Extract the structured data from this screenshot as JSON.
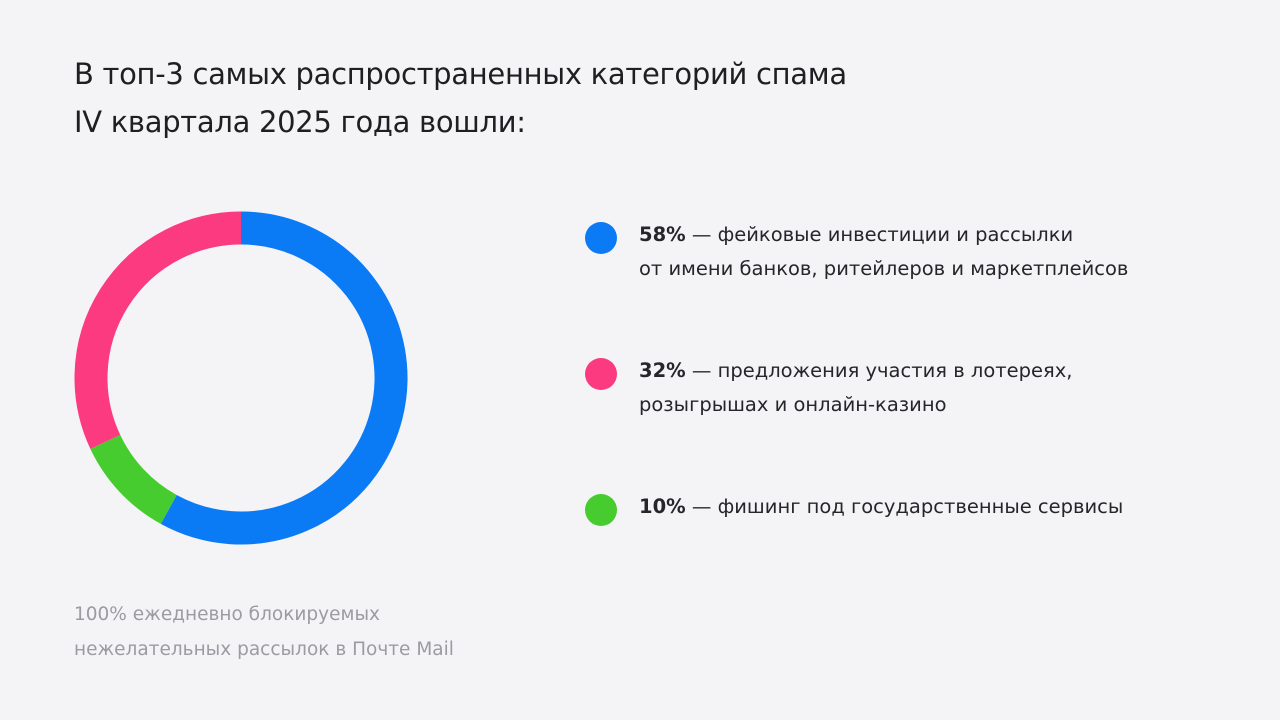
{
  "title": {
    "line1": "В топ-3 самых распространенных категорий спама",
    "line2": "IV квартала 2025 года вошли:"
  },
  "footnote": {
    "line1": "100% ежедневно блокируемых",
    "line2": "нежелательных рассылок в Почте Mail"
  },
  "chart_data": {
    "type": "pie",
    "donut": true,
    "unit": "%",
    "categories": [
      "фейковые инвестиции и рассылки от имени банков, ритейлеров и маркетплейсов",
      "фишинг под государственные сервисы",
      "предложения участия в лотереях, розыгрышах и онлайн-казино"
    ],
    "values": [
      58,
      10,
      32
    ],
    "colors": [
      "#0a7bf5",
      "#46cc2f",
      "#fb3a7f"
    ],
    "legend_placement": "right"
  },
  "legend": [
    {
      "percent": "58%",
      "line1_rest": " — фейковые инвестиции и рассылки",
      "line2": "от имени банков, ритейлеров и маркетплейсов",
      "color": "#0a7bf5"
    },
    {
      "percent": "32%",
      "line1_rest": " — предложения участия в лотереях,",
      "line2": "розыгрышах и онлайн-казино",
      "color": "#fb3a7f"
    },
    {
      "percent": "10%",
      "line1_rest": " — фишинг под государственные сервисы",
      "line2": "",
      "color": "#46cc2f"
    }
  ]
}
